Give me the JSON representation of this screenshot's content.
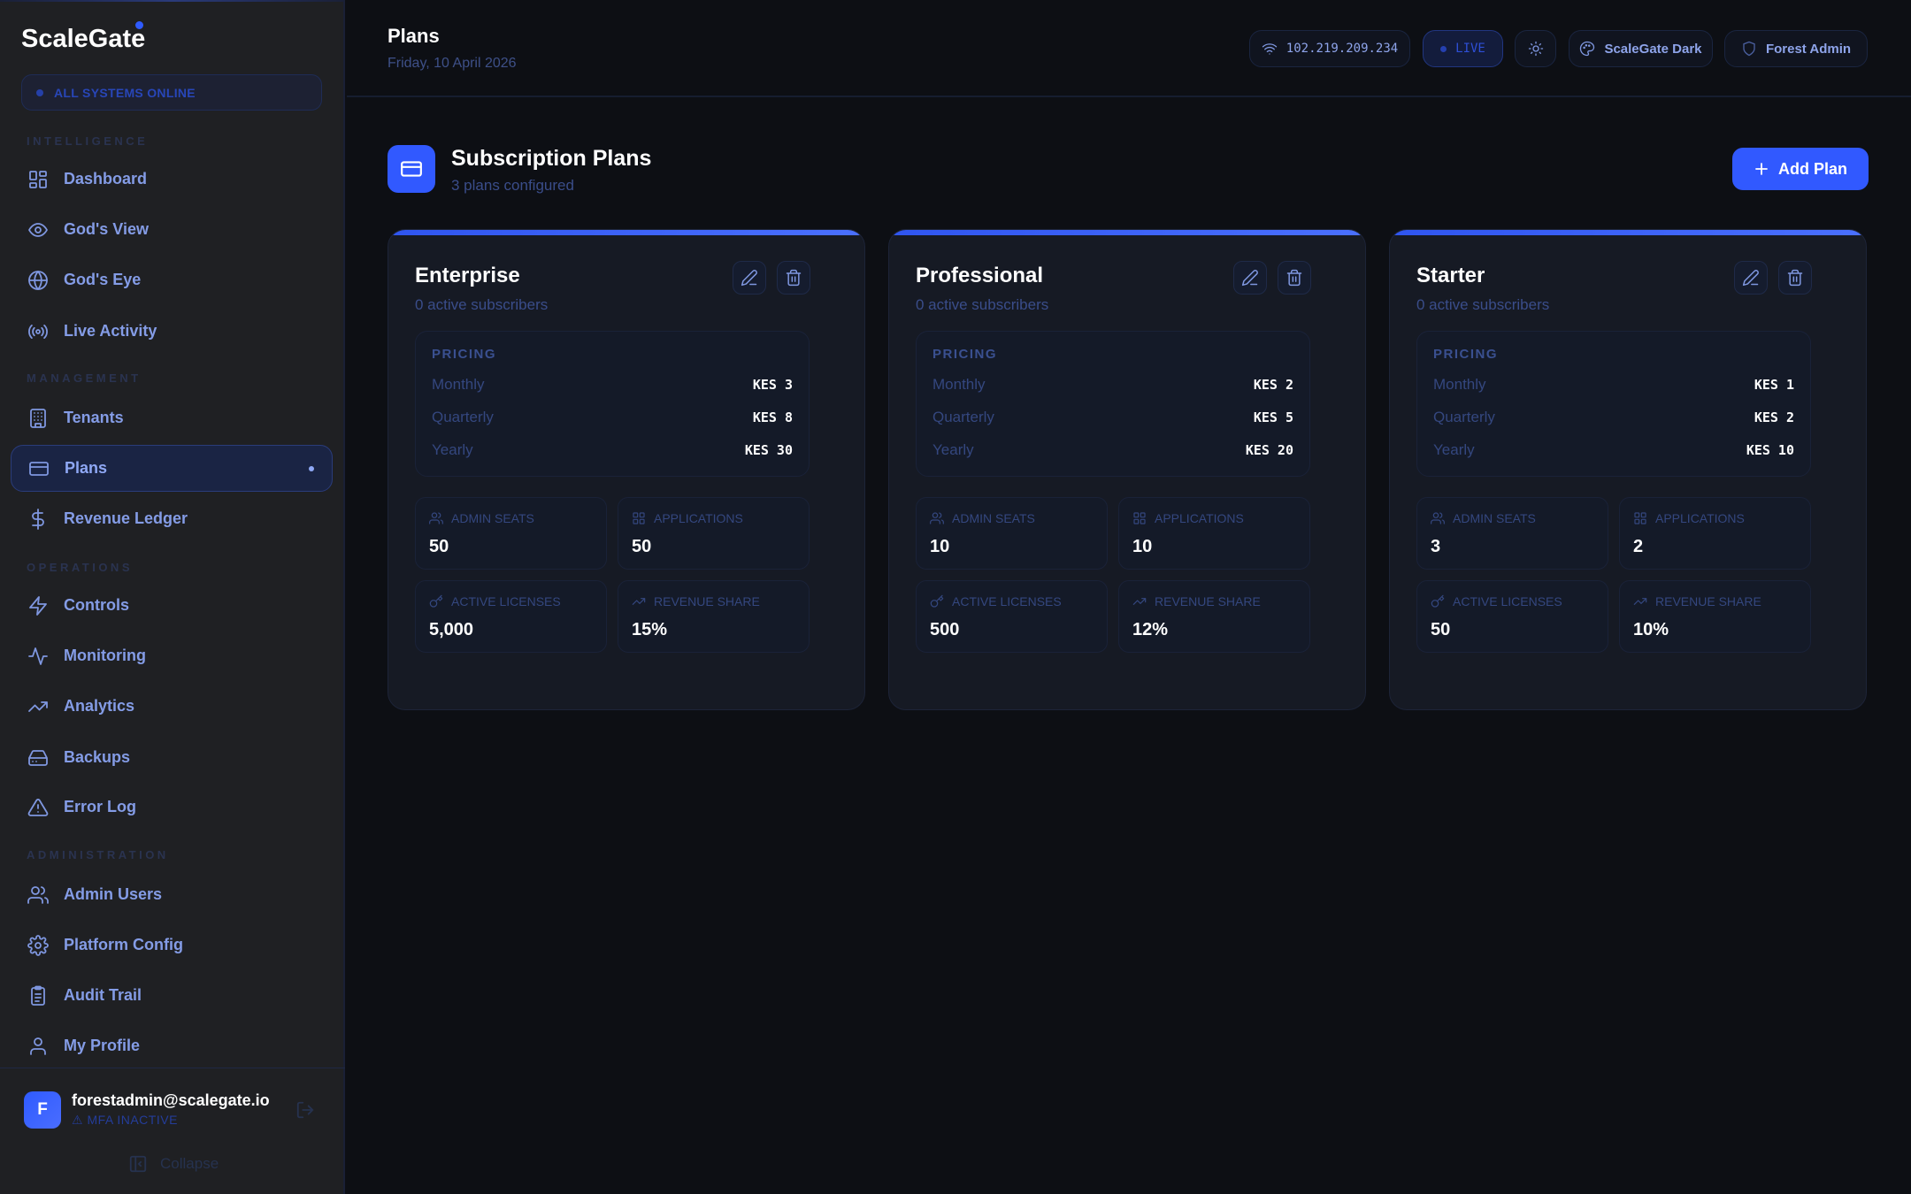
{
  "sidebar": {
    "logo": "ScaleGate",
    "status": "ALL SYSTEMS ONLINE",
    "sections": [
      {
        "label": "INTELLIGENCE"
      },
      {
        "label": "MANAGEMENT"
      },
      {
        "label": "OPERATIONS"
      },
      {
        "label": "ADMINISTRATION"
      }
    ],
    "items": [
      {
        "label": "Dashboard",
        "icon": "dashboard-icon"
      },
      {
        "label": "God's View",
        "icon": "eye-icon"
      },
      {
        "label": "God's Eye",
        "icon": "globe-icon"
      },
      {
        "label": "Live Activity",
        "icon": "broadcast-icon"
      },
      {
        "label": "Tenants",
        "icon": "building-icon"
      },
      {
        "label": "Plans",
        "icon": "credit-card-icon",
        "active": true
      },
      {
        "label": "Revenue Ledger",
        "icon": "dollar-icon"
      },
      {
        "label": "Controls",
        "icon": "zap-icon"
      },
      {
        "label": "Monitoring",
        "icon": "activity-icon"
      },
      {
        "label": "Analytics",
        "icon": "trending-up-icon"
      },
      {
        "label": "Backups",
        "icon": "hard-drive-icon"
      },
      {
        "label": "Error Log",
        "icon": "alert-triangle-icon"
      },
      {
        "label": "Admin Users",
        "icon": "users-icon"
      },
      {
        "label": "Platform Config",
        "icon": "gear-icon"
      },
      {
        "label": "Audit Trail",
        "icon": "clipboard-icon"
      },
      {
        "label": "My Profile",
        "icon": "user-icon"
      }
    ],
    "user": {
      "initial": "F",
      "email": "forestadmin@scalegate.io",
      "mfa": "⚠ MFA INACTIVE"
    },
    "collapse": "Collapse"
  },
  "header": {
    "title": "Plans",
    "date": "Friday, 10 April 2026",
    "ip": "102.219.209.234",
    "live": "LIVE",
    "theme": "ScaleGate Dark",
    "role": "Forest Admin"
  },
  "section": {
    "title": "Subscription Plans",
    "subtitle": "3 plans configured",
    "add_label": "Add Plan"
  },
  "labels": {
    "pricing": "PRICING",
    "monthly": "Monthly",
    "quarterly": "Quarterly",
    "yearly": "Yearly",
    "admin_seats": "ADMIN SEATS",
    "applications": "APPLICATIONS",
    "active_licenses": "ACTIVE LICENSES",
    "revenue_share": "REVENUE SHARE"
  },
  "plans": [
    {
      "name": "Enterprise",
      "subscribers": "0 active subscribers",
      "monthly": "KES 3",
      "quarterly": "KES 8",
      "yearly": "KES 30",
      "admin_seats": "50",
      "applications": "50",
      "active_licenses": "5,000",
      "revenue_share": "15%"
    },
    {
      "name": "Professional",
      "subscribers": "0 active subscribers",
      "monthly": "KES 2",
      "quarterly": "KES 5",
      "yearly": "KES 20",
      "admin_seats": "10",
      "applications": "10",
      "active_licenses": "500",
      "revenue_share": "12%"
    },
    {
      "name": "Starter",
      "subscribers": "0 active subscribers",
      "monthly": "KES 1",
      "quarterly": "KES 2",
      "yearly": "KES 10",
      "admin_seats": "3",
      "applications": "2",
      "active_licenses": "50",
      "revenue_share": "10%"
    }
  ],
  "colors": {
    "accent": "#3159ff",
    "background": "#0d0f14",
    "sidebar": "#1f2023",
    "card": "#161a24"
  }
}
